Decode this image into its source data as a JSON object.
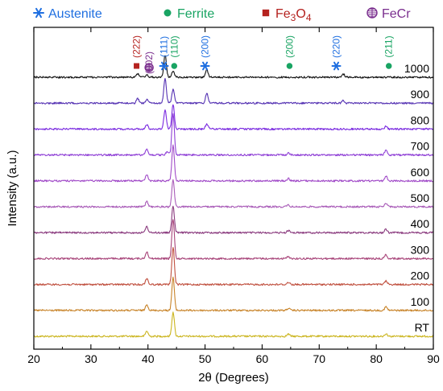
{
  "chart_data": {
    "type": "line",
    "xlabel": "2θ (Degrees)",
    "ylabel": "Intensity  (a.u.)",
    "xlim": [
      20,
      90
    ],
    "xticks": [
      20,
      30,
      40,
      50,
      60,
      70,
      80,
      90
    ],
    "grid": false,
    "legend_position": "top",
    "legend": [
      {
        "label": "Austenite",
        "marker": "asterisk",
        "color": "#1f6fe0"
      },
      {
        "label": "Ferrite",
        "marker": "dot",
        "color": "#19a463"
      },
      {
        "label": "Fe3O4",
        "label_base": "Fe",
        "label_sub1": "3",
        "label_mid": "O",
        "label_sub2": "4",
        "marker": "square",
        "color": "#b5221f"
      },
      {
        "label": "FeCr",
        "marker": "hatched-circle",
        "color": "#7a2e8e"
      }
    ],
    "series": [
      {
        "name": "RT",
        "color": "#cbb51f",
        "peaks": [
          {
            "x": 39.8,
            "h": 0.12
          },
          {
            "x": 44.4,
            "h": 0.55
          },
          {
            "x": 64.6,
            "h": 0.05
          },
          {
            "x": 81.7,
            "h": 0.06
          }
        ]
      },
      {
        "name": "100",
        "color": "#c8842a",
        "peaks": [
          {
            "x": 39.8,
            "h": 0.14
          },
          {
            "x": 44.4,
            "h": 0.75
          },
          {
            "x": 64.6,
            "h": 0.05
          },
          {
            "x": 81.7,
            "h": 0.08
          }
        ]
      },
      {
        "name": "200",
        "color": "#c0503f",
        "peaks": [
          {
            "x": 39.8,
            "h": 0.14
          },
          {
            "x": 44.4,
            "h": 0.85
          },
          {
            "x": 64.6,
            "h": 0.05
          },
          {
            "x": 81.7,
            "h": 0.08
          }
        ]
      },
      {
        "name": "300",
        "color": "#a8457a",
        "peaks": [
          {
            "x": 39.8,
            "h": 0.16
          },
          {
            "x": 44.4,
            "h": 0.9
          },
          {
            "x": 64.6,
            "h": 0.05
          },
          {
            "x": 81.7,
            "h": 0.09
          }
        ]
      },
      {
        "name": "400",
        "color": "#8a3a7e",
        "peaks": [
          {
            "x": 39.8,
            "h": 0.14
          },
          {
            "x": 44.4,
            "h": 0.6
          },
          {
            "x": 64.6,
            "h": 0.05
          },
          {
            "x": 81.7,
            "h": 0.08
          }
        ]
      },
      {
        "name": "500",
        "color": "#a95cb8",
        "peaks": [
          {
            "x": 39.8,
            "h": 0.12
          },
          {
            "x": 44.4,
            "h": 0.6
          },
          {
            "x": 64.6,
            "h": 0.04
          },
          {
            "x": 81.7,
            "h": 0.08
          }
        ]
      },
      {
        "name": "600",
        "color": "#a14bc8",
        "peaks": [
          {
            "x": 39.8,
            "h": 0.14
          },
          {
            "x": 44.4,
            "h": 0.8
          },
          {
            "x": 64.6,
            "h": 0.05
          },
          {
            "x": 81.7,
            "h": 0.1
          }
        ]
      },
      {
        "name": "700",
        "color": "#8f3fd6",
        "peaks": [
          {
            "x": 39.8,
            "h": 0.14
          },
          {
            "x": 43.4,
            "h": 0.08
          },
          {
            "x": 44.4,
            "h": 0.95
          },
          {
            "x": 64.6,
            "h": 0.05
          },
          {
            "x": 81.7,
            "h": 0.1
          }
        ]
      },
      {
        "name": "800",
        "color": "#7a2ae0",
        "peaks": [
          {
            "x": 39.8,
            "h": 0.1
          },
          {
            "x": 43.0,
            "h": 0.45
          },
          {
            "x": 44.4,
            "h": 0.55
          },
          {
            "x": 50.3,
            "h": 0.12
          },
          {
            "x": 81.7,
            "h": 0.06
          }
        ]
      },
      {
        "name": "900",
        "color": "#5532b3",
        "peaks": [
          {
            "x": 38.2,
            "h": 0.1
          },
          {
            "x": 39.8,
            "h": 0.08
          },
          {
            "x": 43.0,
            "h": 0.55
          },
          {
            "x": 44.4,
            "h": 0.3
          },
          {
            "x": 50.3,
            "h": 0.22
          },
          {
            "x": 74.2,
            "h": 0.06
          }
        ]
      },
      {
        "name": "1000",
        "color": "#111111",
        "peaks": [
          {
            "x": 38.2,
            "h": 0.08
          },
          {
            "x": 39.8,
            "h": 0.06
          },
          {
            "x": 43.0,
            "h": 0.5
          },
          {
            "x": 44.4,
            "h": 0.15
          },
          {
            "x": 50.3,
            "h": 0.18
          },
          {
            "x": 74.2,
            "h": 0.08
          }
        ]
      }
    ],
    "annotations": [
      {
        "x": 38.0,
        "text": "(222)",
        "color": "#b5221f",
        "marker": "square",
        "level": 1
      },
      {
        "x": 40.2,
        "text": "(002)",
        "color": "#7a2e8e",
        "marker": "hatched-circle",
        "level": 0
      },
      {
        "x": 42.8,
        "text": "(111)",
        "color": "#1f6fe0",
        "marker": "asterisk",
        "level": 1
      },
      {
        "x": 44.6,
        "text": "(110)",
        "color": "#19a463",
        "marker": "dot",
        "level": 1
      },
      {
        "x": 50.0,
        "text": "(200)",
        "color": "#1f6fe0",
        "marker": "asterisk",
        "level": 1
      },
      {
        "x": 64.8,
        "text": "(200)",
        "color": "#19a463",
        "marker": "dot",
        "level": 1
      },
      {
        "x": 73.0,
        "text": "(220)",
        "color": "#1f6fe0",
        "marker": "asterisk",
        "level": 1
      },
      {
        "x": 82.2,
        "text": "(211)",
        "color": "#19a463",
        "marker": "dot",
        "level": 1
      }
    ]
  }
}
